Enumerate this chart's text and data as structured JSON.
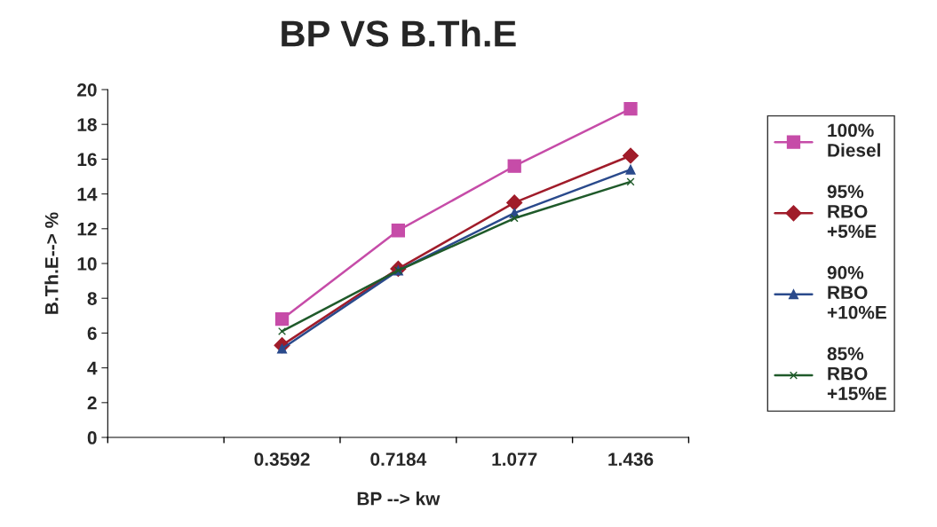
{
  "chart_data": {
    "type": "line",
    "title": "BP VS B.Th.E",
    "xlabel": "BP --> kw",
    "ylabel": "B.Th.E--> %",
    "categories": [
      null,
      "0.3592",
      "0.7184",
      "1.077",
      "1.436"
    ],
    "ylim": [
      0,
      20
    ],
    "yticks": [
      0,
      2,
      4,
      6,
      8,
      10,
      12,
      14,
      16,
      18,
      20
    ],
    "grid": false,
    "legend": "right",
    "series": [
      {
        "name": "100% Diesel",
        "color": "#c64ca8",
        "marker": "square",
        "values": [
          null,
          6.8,
          11.9,
          15.6,
          18.9
        ]
      },
      {
        "name": "95% RBO +5%E",
        "color": "#a01c2a",
        "marker": "diamond",
        "values": [
          null,
          5.3,
          9.7,
          13.5,
          16.2
        ]
      },
      {
        "name": "90% RBO +10%E",
        "color": "#2a4a8c",
        "marker": "triangle",
        "values": [
          null,
          5.1,
          9.6,
          12.9,
          15.4
        ]
      },
      {
        "name": "85% RBO +15%E",
        "color": "#1f5a2a",
        "marker": "cross",
        "values": [
          null,
          6.1,
          9.6,
          12.6,
          14.7
        ]
      }
    ]
  }
}
